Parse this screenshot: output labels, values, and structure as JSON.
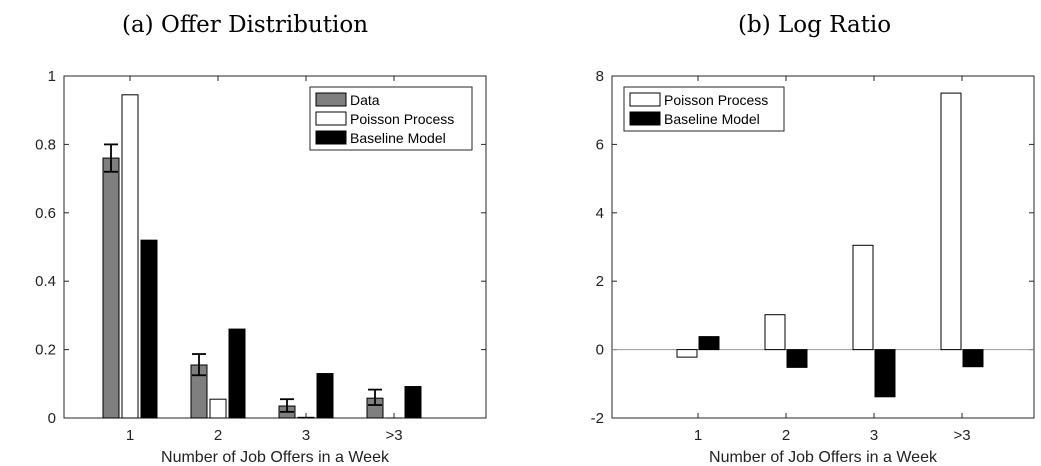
{
  "chart_data": [
    {
      "type": "bar",
      "title": "(a) Offer Distribution",
      "xlabel": "Number of Job Offers in a Week",
      "ylabel": "",
      "categories": [
        "1",
        "2",
        "3",
        ">3"
      ],
      "ylim": [
        0,
        1
      ],
      "yticks": [
        "0",
        "0.2",
        "0.4",
        "0.6",
        "0.8",
        "1"
      ],
      "legend_position": "top-right",
      "series": [
        {
          "name": "Data",
          "color": "#7f7f7f",
          "values": [
            0.76,
            0.155,
            0.035,
            0.058
          ],
          "error_low": [
            0.72,
            0.125,
            0.018,
            0.038
          ],
          "error_high": [
            0.8,
            0.187,
            0.055,
            0.083
          ]
        },
        {
          "name": "Poisson Process",
          "color": "#ffffff",
          "values": [
            0.945,
            0.055,
            0.002,
            0.0
          ]
        },
        {
          "name": "Baseline Model",
          "color": "#000000",
          "values": [
            0.52,
            0.26,
            0.13,
            0.092
          ]
        }
      ]
    },
    {
      "type": "bar",
      "title": "(b) Log Ratio",
      "xlabel": "Number of Job Offers in a Week",
      "ylabel": "",
      "categories": [
        "1",
        "2",
        "3",
        ">3"
      ],
      "ylim": [
        -2,
        8
      ],
      "yticks": [
        "-2",
        "0",
        "2",
        "4",
        "6",
        "8"
      ],
      "legend_position": "top-left",
      "series": [
        {
          "name": "Poisson Process",
          "color": "#ffffff",
          "values": [
            -0.22,
            1.02,
            3.05,
            7.5
          ]
        },
        {
          "name": "Baseline Model",
          "color": "#000000",
          "values": [
            0.38,
            -0.52,
            -1.38,
            -0.5
          ]
        }
      ]
    }
  ]
}
